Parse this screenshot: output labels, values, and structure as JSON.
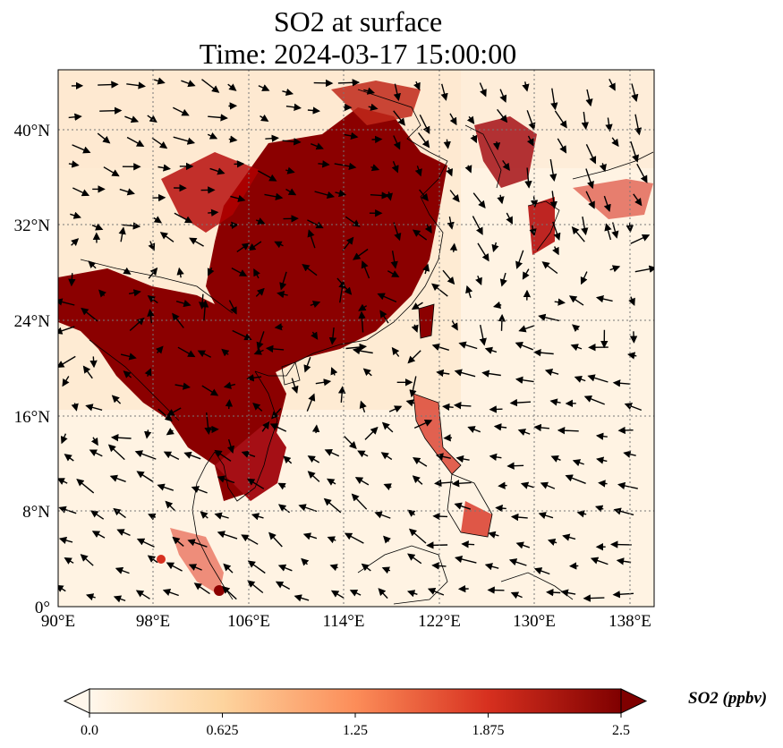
{
  "title": {
    "line1": "SO2 at surface",
    "line2": "Time: 2024-03-17 15:00:00"
  },
  "map": {
    "lon_ticks": [
      "90°E",
      "98°E",
      "106°E",
      "114°E",
      "122°E",
      "130°E",
      "138°E"
    ],
    "lat_ticks": [
      "0°",
      "8°N",
      "16°N",
      "24°N",
      "32°N",
      "40°N"
    ],
    "extent": {
      "lon_min": 90,
      "lon_max": 140,
      "lat_min": 0,
      "lat_max": 45
    },
    "gridlines": true,
    "gridline_style": "dotted",
    "colormap": "OrRd",
    "vector_field": "wind arrows"
  },
  "colorbar": {
    "label": "SO2 (ppbv)",
    "ticks": [
      "0.0",
      "0.625",
      "1.25",
      "1.875",
      "2.5"
    ],
    "min": 0.0,
    "max": 2.5,
    "extend": "both",
    "colors": [
      "#fff7ec",
      "#fdd49e",
      "#fc8d59",
      "#d7301f",
      "#7f0000"
    ]
  }
}
